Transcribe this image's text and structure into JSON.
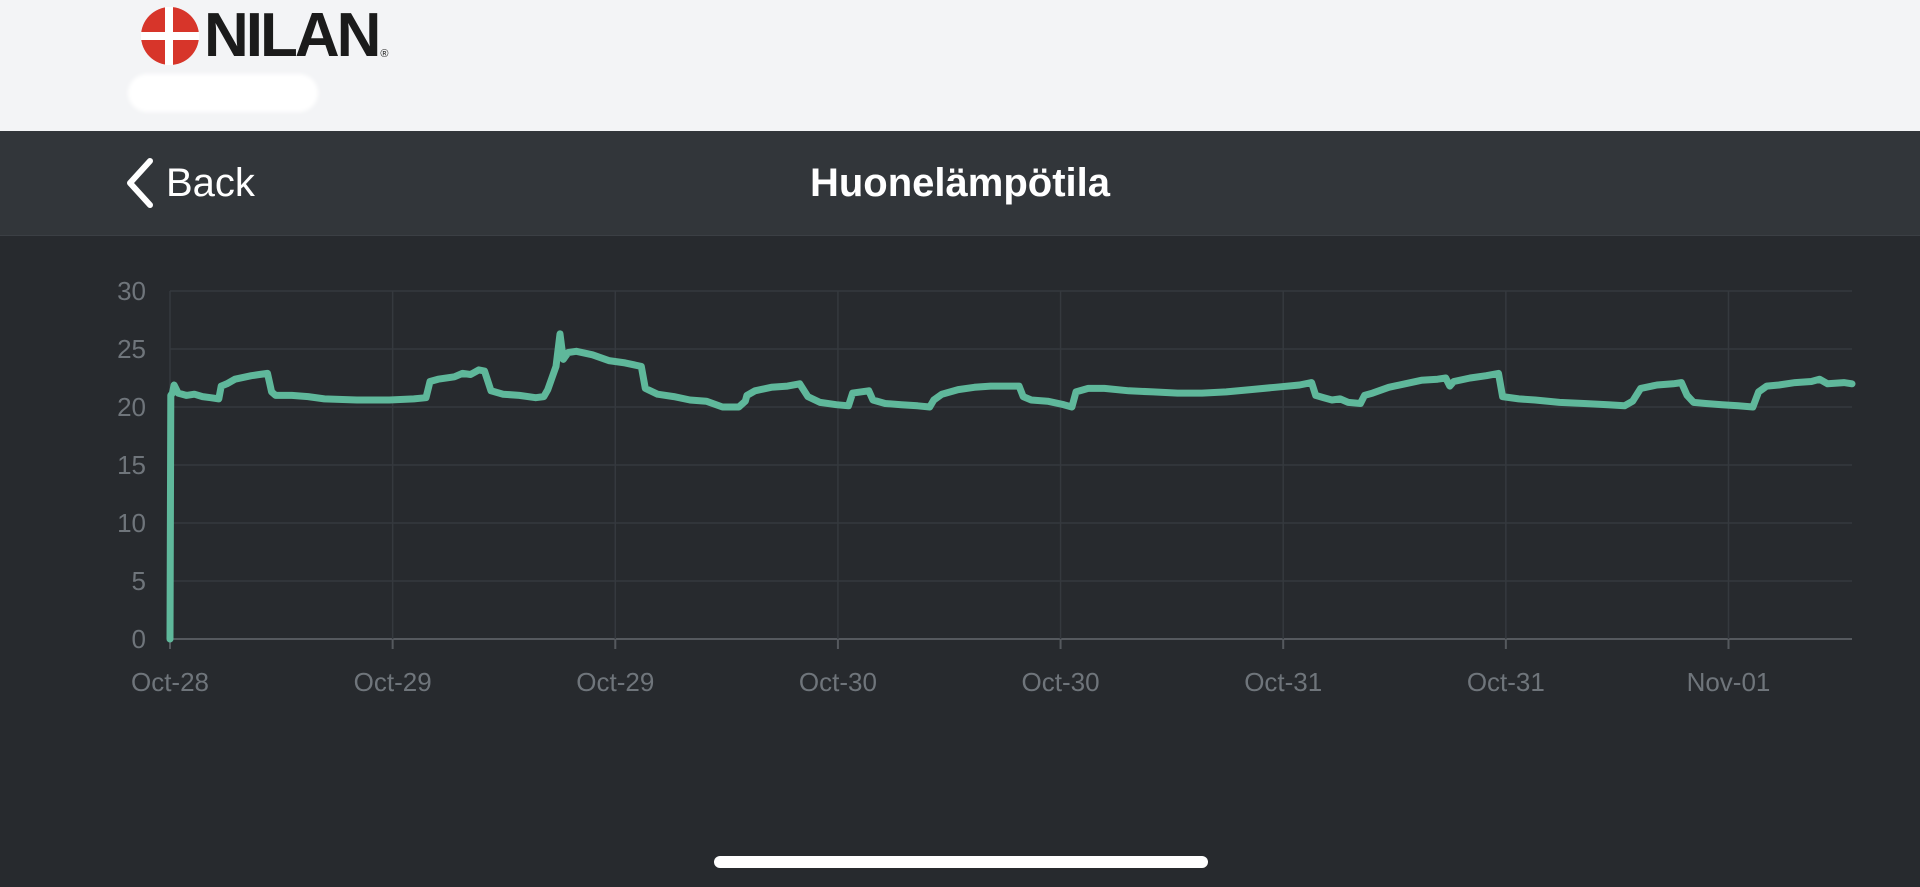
{
  "brand": {
    "name": "NILAN",
    "registered": "®"
  },
  "nav": {
    "back_label": "Back",
    "title": "Huonelämpötila"
  },
  "colors": {
    "line": "#5fb89b",
    "background": "#272a2e",
    "nav": "#32363a",
    "logo_red": "#d7352a"
  },
  "chart_data": {
    "type": "line",
    "title": "Huonelämpötila",
    "xlabel": "",
    "ylabel": "",
    "ylim": [
      0,
      30
    ],
    "yticks": [
      "0",
      "5",
      "10",
      "15",
      "20",
      "25",
      "30"
    ],
    "xticks": [
      "Oct-28",
      "Oct-29",
      "Oct-29",
      "Oct-30",
      "Oct-30",
      "Oct-31",
      "Oct-31",
      "Nov-01"
    ],
    "grid": true,
    "legend": "none",
    "x_unit": "hours since first sample",
    "series": [
      {
        "name": "",
        "values": [
          [
            0,
            0
          ],
          [
            0.1,
            21.0
          ],
          [
            0.3,
            21.2
          ],
          [
            0.5,
            21.9
          ],
          [
            1.0,
            21.2
          ],
          [
            2,
            21.0
          ],
          [
            3,
            21.1
          ],
          [
            4,
            20.9
          ],
          [
            5,
            20.8
          ],
          [
            6,
            20.7
          ],
          [
            6.3,
            21.8
          ],
          [
            7,
            22.0
          ],
          [
            8,
            22.4
          ],
          [
            10,
            22.7
          ],
          [
            11,
            22.8
          ],
          [
            12,
            22.9
          ],
          [
            12.5,
            21.3
          ],
          [
            13,
            21.0
          ],
          [
            15,
            21.0
          ],
          [
            17,
            20.9
          ],
          [
            19,
            20.7
          ],
          [
            23,
            20.6
          ],
          [
            27,
            20.6
          ],
          [
            30,
            20.7
          ],
          [
            31.5,
            20.8
          ],
          [
            32,
            22.2
          ],
          [
            33,
            22.4
          ],
          [
            35,
            22.6
          ],
          [
            36,
            22.9
          ],
          [
            37,
            22.8
          ],
          [
            38,
            23.2
          ],
          [
            38.7,
            23.1
          ],
          [
            39.5,
            21.4
          ],
          [
            41,
            21.1
          ],
          [
            43,
            21.0
          ],
          [
            45,
            20.8
          ],
          [
            46,
            20.9
          ],
          [
            46.5,
            21.5
          ],
          [
            47,
            22.5
          ],
          [
            47.5,
            23.5
          ],
          [
            48,
            26.3
          ],
          [
            48.4,
            24.1
          ],
          [
            49,
            24.7
          ],
          [
            50,
            24.8
          ],
          [
            52,
            24.5
          ],
          [
            54,
            24.0
          ],
          [
            56,
            23.8
          ],
          [
            58,
            23.5
          ],
          [
            58.5,
            21.6
          ],
          [
            60,
            21.1
          ],
          [
            62,
            20.9
          ],
          [
            64,
            20.6
          ],
          [
            66,
            20.5
          ],
          [
            68,
            20.0
          ],
          [
            70,
            20.0
          ],
          [
            70.8,
            20.5
          ],
          [
            71,
            21.0
          ],
          [
            72,
            21.4
          ],
          [
            74,
            21.7
          ],
          [
            76,
            21.8
          ],
          [
            77.5,
            22.0
          ],
          [
            78.5,
            20.9
          ],
          [
            80,
            20.4
          ],
          [
            82,
            20.2
          ],
          [
            83.5,
            20.1
          ],
          [
            84,
            21.2
          ],
          [
            85,
            21.3
          ],
          [
            86,
            21.4
          ],
          [
            86.5,
            20.6
          ],
          [
            88,
            20.3
          ],
          [
            90,
            20.2
          ],
          [
            92,
            20.1
          ],
          [
            93.5,
            20.0
          ],
          [
            94,
            20.6
          ],
          [
            95,
            21.1
          ],
          [
            97,
            21.5
          ],
          [
            99,
            21.7
          ],
          [
            101,
            21.8
          ],
          [
            103,
            21.8
          ],
          [
            104.5,
            21.8
          ],
          [
            105,
            20.9
          ],
          [
            106,
            20.6
          ],
          [
            108,
            20.5
          ],
          [
            110,
            20.2
          ],
          [
            111,
            20.0
          ],
          [
            111.5,
            21.3
          ],
          [
            113,
            21.6
          ],
          [
            115,
            21.6
          ],
          [
            118,
            21.4
          ],
          [
            121,
            21.3
          ],
          [
            124,
            21.2
          ],
          [
            127,
            21.2
          ],
          [
            130,
            21.3
          ],
          [
            133,
            21.5
          ],
          [
            136,
            21.7
          ],
          [
            139,
            21.9
          ],
          [
            140.5,
            22.1
          ],
          [
            141,
            21.0
          ],
          [
            142,
            20.8
          ],
          [
            143,
            20.6
          ],
          [
            144,
            20.7
          ],
          [
            145,
            20.4
          ],
          [
            146.5,
            20.3
          ],
          [
            147,
            21.0
          ],
          [
            148,
            21.2
          ],
          [
            150,
            21.7
          ],
          [
            152,
            22.0
          ],
          [
            154,
            22.3
          ],
          [
            156,
            22.4
          ],
          [
            157,
            22.5
          ],
          [
            157.5,
            21.8
          ],
          [
            158,
            22.2
          ],
          [
            160,
            22.5
          ],
          [
            162,
            22.7
          ],
          [
            163.5,
            22.9
          ],
          [
            164,
            20.9
          ],
          [
            166,
            20.7
          ],
          [
            168,
            20.6
          ],
          [
            171,
            20.4
          ],
          [
            174,
            20.3
          ],
          [
            177,
            20.2
          ],
          [
            179,
            20.1
          ],
          [
            180,
            20.5
          ],
          [
            181,
            21.6
          ],
          [
            183,
            21.9
          ],
          [
            185,
            22.0
          ],
          [
            186,
            22.1
          ],
          [
            186.7,
            21.0
          ],
          [
            187.5,
            20.4
          ],
          [
            189,
            20.3
          ],
          [
            191,
            20.2
          ],
          [
            193,
            20.1
          ],
          [
            194.8,
            20.0
          ],
          [
            195.5,
            21.3
          ],
          [
            196.5,
            21.8
          ],
          [
            198,
            21.9
          ],
          [
            200,
            22.1
          ],
          [
            202,
            22.2
          ],
          [
            203,
            22.4
          ],
          [
            204,
            22.0
          ],
          [
            206,
            22.1
          ],
          [
            207,
            22.0
          ]
        ]
      }
    ],
    "x_tick_hours": [
      0,
      27.4,
      54.8,
      82.2,
      109.6,
      137.0,
      164.4,
      191.8
    ],
    "xlim": [
      0,
      207
    ]
  }
}
